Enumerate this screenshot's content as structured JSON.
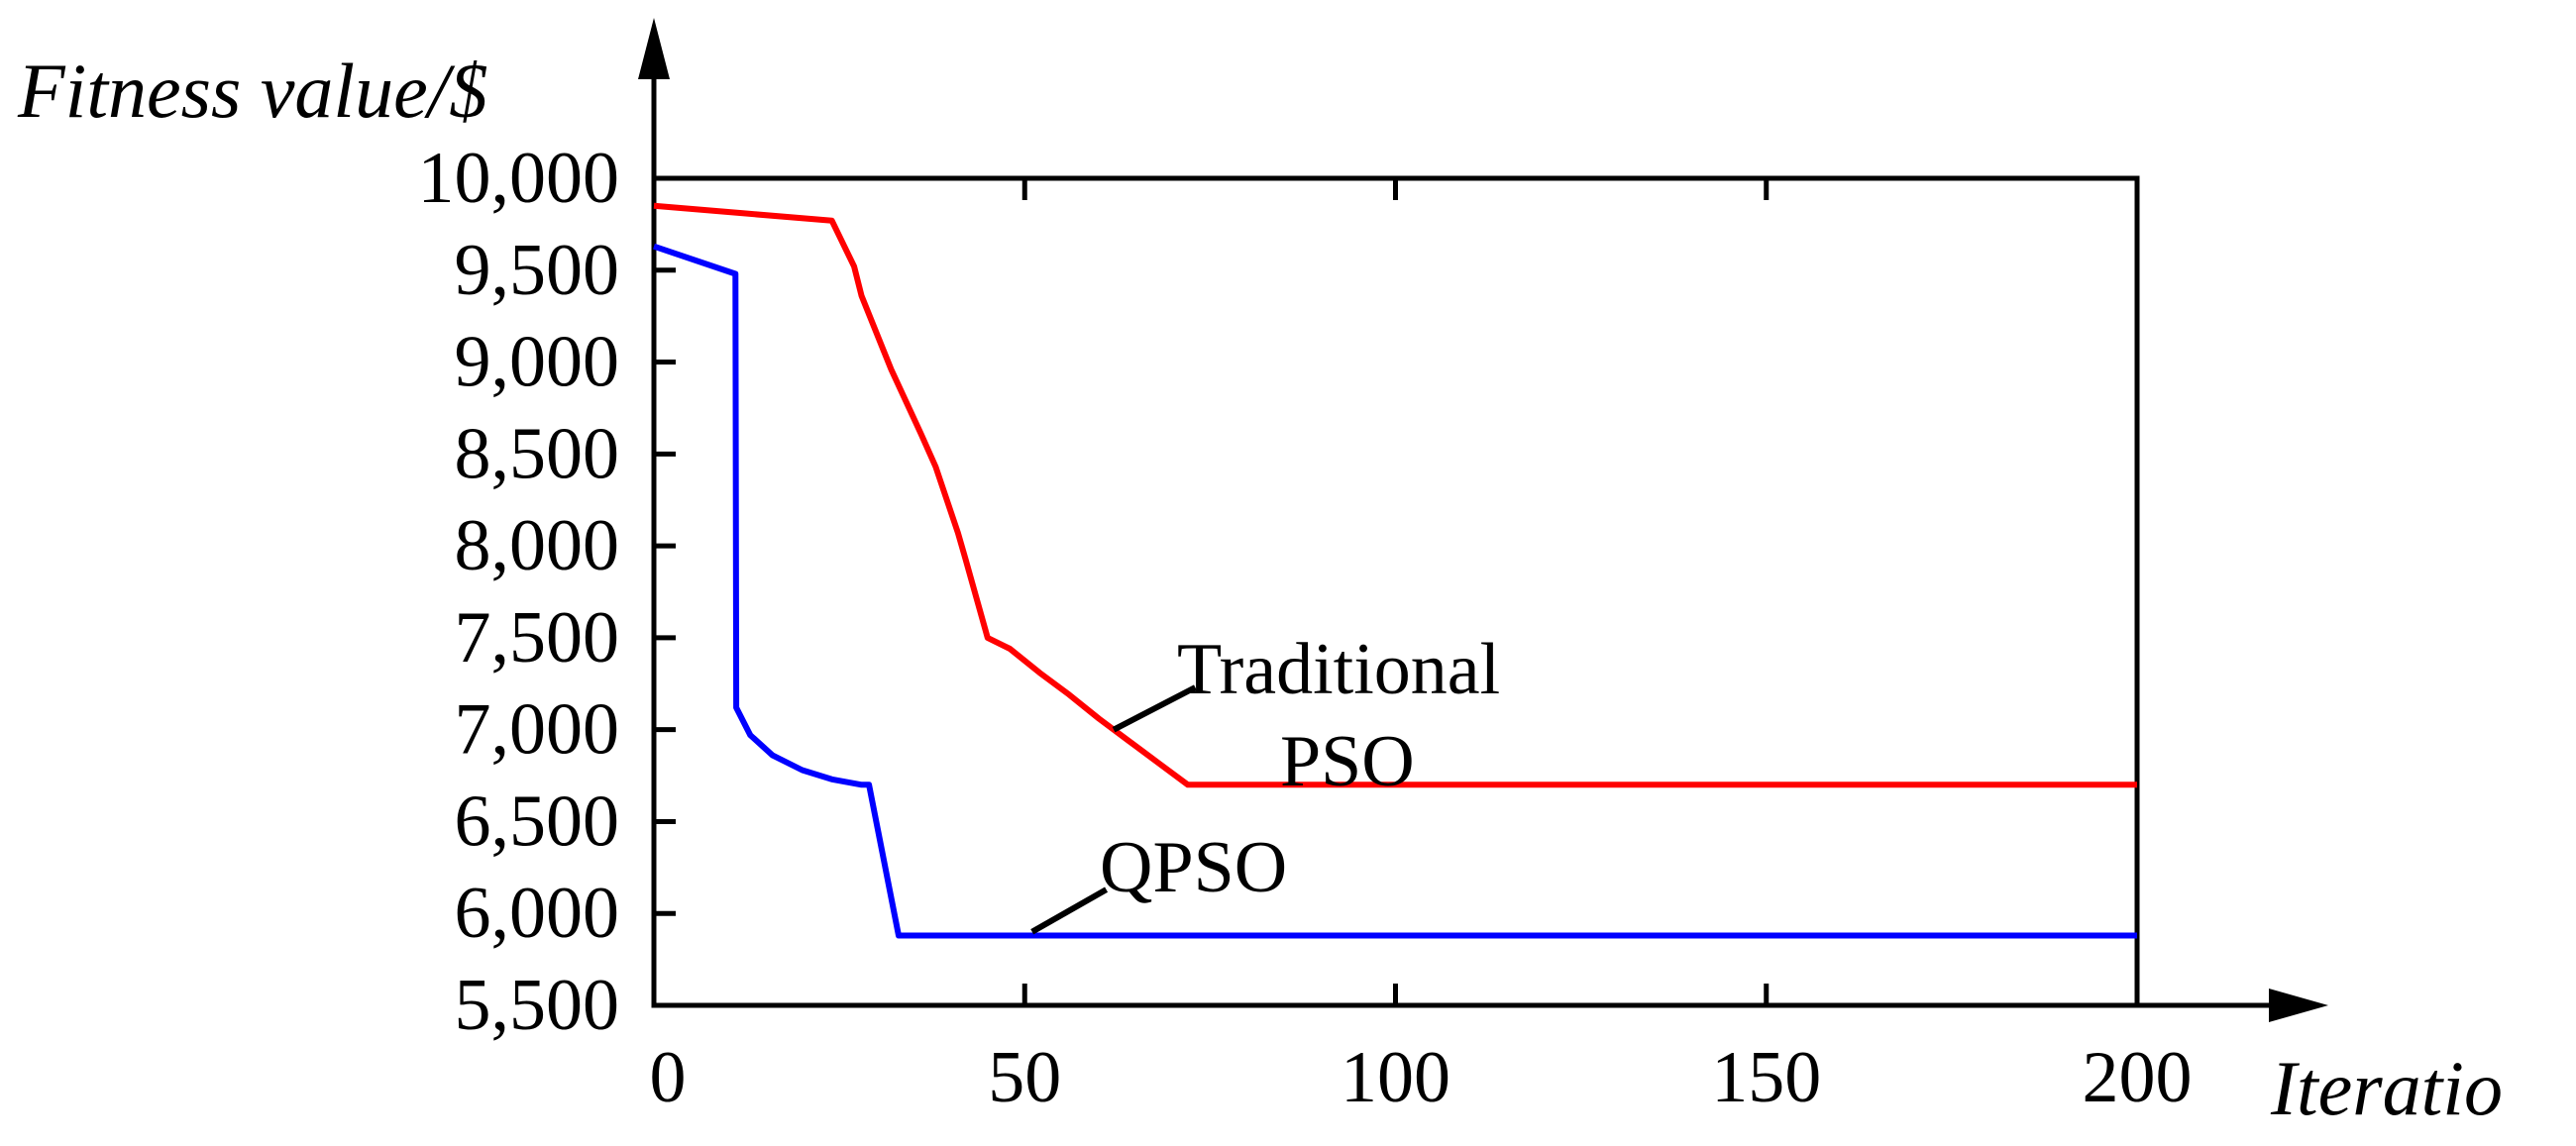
{
  "chart_data": {
    "type": "line",
    "title": "",
    "ylabel": "Fitness value/$",
    "xlabel": "Iteratio",
    "xlim": [
      0,
      200
    ],
    "ylim": [
      5500,
      10000
    ],
    "xticks": [
      0,
      50,
      100,
      150,
      200
    ],
    "yticks": [
      5500,
      6000,
      6500,
      7000,
      7500,
      8000,
      8500,
      9000,
      9500,
      10000
    ],
    "xtick_labels": [
      "0",
      "50",
      "100",
      "150",
      "200"
    ],
    "ytick_labels": [
      "5,500",
      "6,000",
      "6,500",
      "7,000",
      "7,500",
      "8,000",
      "8,500",
      "9,000",
      "9,500",
      "10,000"
    ],
    "grid": false,
    "series": [
      {
        "name": "Traditional PSO",
        "color": "#ff0000",
        "x": [
          0,
          12,
          24,
          27,
          28,
          32,
          36,
          38,
          41,
          42,
          45,
          48,
          52,
          56,
          60,
          64,
          68,
          72,
          80,
          100,
          150,
          200
        ],
        "y": [
          9850,
          9810,
          9770,
          9520,
          9360,
          8960,
          8610,
          8430,
          8070,
          7930,
          7500,
          7440,
          7310,
          7190,
          7060,
          6940,
          6820,
          6700,
          6700,
          6700,
          6700,
          6700
        ]
      },
      {
        "name": "QPSO",
        "color": "#0000ff",
        "x": [
          0,
          11,
          11.1,
          13,
          16,
          20,
          24,
          28,
          29,
          33,
          34,
          50,
          100,
          150,
          200
        ],
        "y": [
          9630,
          9480,
          7120,
          6970,
          6860,
          6780,
          6730,
          6700,
          6700,
          5880,
          5880,
          5880,
          5880,
          5880,
          5880
        ]
      }
    ],
    "annotations": [
      {
        "text_line1": "Traditional",
        "text_line2": "PSO",
        "series": "Traditional PSO",
        "leader_from": [
          62,
          7000
        ],
        "leader_to": [
          73,
          7230
        ]
      },
      {
        "text_line1": "QPSO",
        "series": "QPSO",
        "leader_from": [
          51,
          5900
        ],
        "leader_to": [
          61,
          6130
        ]
      }
    ]
  }
}
